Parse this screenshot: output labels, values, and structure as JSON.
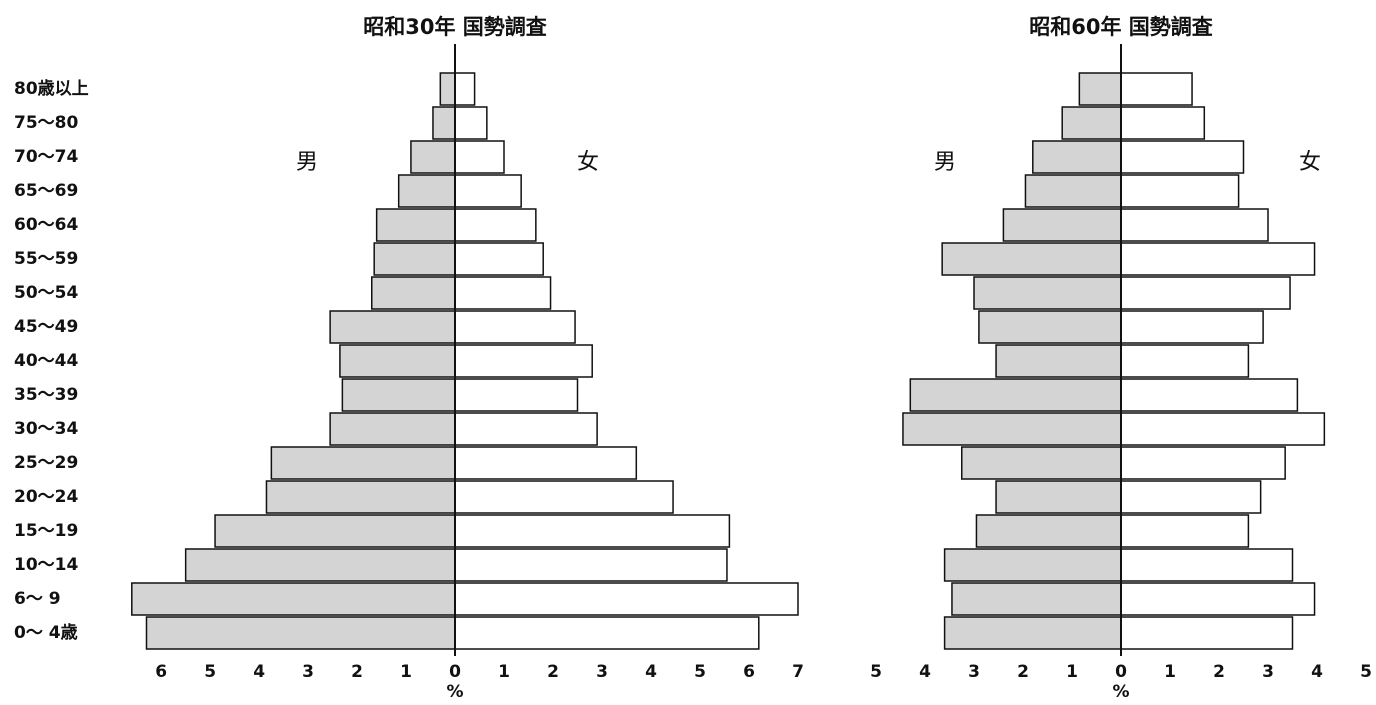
{
  "chart_data": [
    {
      "type": "pyramid",
      "title": "昭和30年 国勢調査",
      "xlabel": "%",
      "categories": [
        "80歳以上",
        "75～80",
        "70～74",
        "65～69",
        "60～64",
        "55～59",
        "50～54",
        "45～49",
        "40～44",
        "35～39",
        "30～34",
        "25～29",
        "20～24",
        "15～19",
        "10～14",
        "6～ 9",
        "0～ 4歳"
      ],
      "series": [
        {
          "name": "男",
          "color": "#d4d4d4",
          "xlim": [
            0,
            6.8
          ],
          "xticks": [
            1,
            2,
            3,
            4,
            5,
            6
          ],
          "values": [
            0.3,
            0.45,
            0.9,
            1.15,
            1.6,
            1.65,
            1.7,
            2.55,
            2.35,
            2.3,
            2.55,
            3.75,
            3.85,
            4.9,
            5.5,
            6.6,
            6.3
          ]
        },
        {
          "name": "女",
          "color": "#ffffff",
          "xlim": [
            0,
            7
          ],
          "xticks": [
            0,
            1,
            2,
            3,
            4,
            5,
            6,
            7
          ],
          "values": [
            0.4,
            0.65,
            1.0,
            1.35,
            1.65,
            1.8,
            1.95,
            2.45,
            2.8,
            2.5,
            2.9,
            3.7,
            4.45,
            5.6,
            5.55,
            7.0,
            6.2
          ]
        }
      ]
    },
    {
      "type": "pyramid",
      "title": "昭和60年 国勢調査",
      "xlabel": "%",
      "categories": [
        null,
        null,
        null,
        null,
        null,
        null,
        null,
        null,
        null,
        null,
        null,
        null,
        null,
        null,
        null,
        null,
        null
      ],
      "series": [
        {
          "name": "男",
          "color": "#d4d4d4",
          "xlim": [
            0,
            5
          ],
          "xticks": [
            1,
            2,
            3,
            4,
            5
          ],
          "values": [
            0.85,
            1.2,
            1.8,
            1.95,
            2.4,
            3.65,
            3.0,
            2.9,
            2.55,
            4.3,
            4.45,
            3.25,
            2.55,
            2.95,
            3.6,
            3.45,
            3.6
          ]
        },
        {
          "name": "女",
          "color": "#ffffff",
          "xlim": [
            0,
            5
          ],
          "xticks": [
            0,
            1,
            2,
            3,
            4,
            5
          ],
          "values": [
            1.45,
            1.7,
            2.5,
            2.4,
            3.0,
            3.95,
            3.45,
            2.9,
            2.6,
            3.6,
            4.15,
            3.35,
            2.85,
            2.6,
            3.5,
            3.95,
            3.5
          ]
        }
      ]
    }
  ]
}
